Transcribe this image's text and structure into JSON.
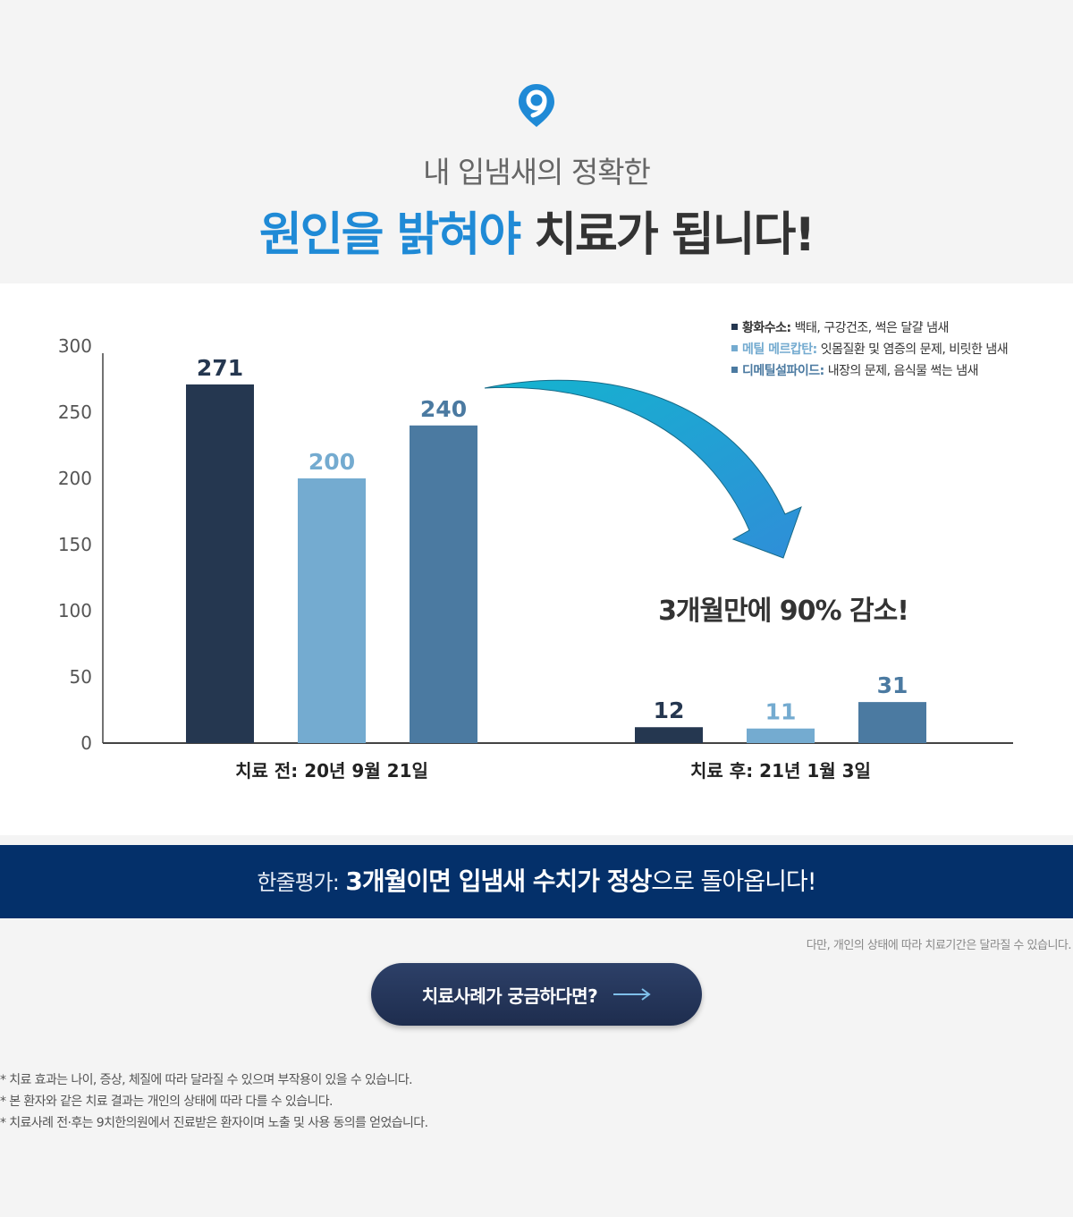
{
  "header": {
    "subtitle": "내 입냄새의 정확한",
    "title_highlight": "원인을 밝혀야",
    "title_rest": "치료가 됩니다!"
  },
  "colors": {
    "accent": "#1f8ad6",
    "series_1": "#253750",
    "series_2": "#74abd0",
    "series_3": "#4b7aa1",
    "summary_bg": "#04306a"
  },
  "legend": [
    {
      "name": "황화수소:",
      "desc": " 백태, 구강건조, 썩은 달걀 냄새",
      "color": "#253750"
    },
    {
      "name": "메틸 메르캅탄:",
      "desc": " 잇몸질환 및 염증의 문제, 비릿한 냄새",
      "color": "#74abd0"
    },
    {
      "name": "디메틸설파이드:",
      "desc": " 내장의 문제, 음식물 썩는 냄새",
      "color": "#4b7aa1"
    }
  ],
  "chart_data": {
    "type": "bar",
    "categories": [
      "치료 전: 20년 9월 21일",
      "치료 후: 21년 1월 3일"
    ],
    "series": [
      {
        "name": "황화수소",
        "values": [
          271,
          12
        ]
      },
      {
        "name": "메틸 메르캅탄",
        "values": [
          200,
          11
        ]
      },
      {
        "name": "디메틸설파이드",
        "values": [
          240,
          31
        ]
      }
    ],
    "ylim": [
      0,
      300
    ],
    "yticks": [
      0,
      50,
      100,
      150,
      200,
      250,
      300
    ],
    "grid": false,
    "legend_position": "top-right",
    "annotation": "3개월만에 90% 감소!"
  },
  "summary": {
    "lead": "한줄평가:",
    "bold1": "3개월이면 입냄새 수치가 정상",
    "rest": "으로 돌아옵니다!"
  },
  "disclaimer": "다만, 개인의 상태에 따라 치료기간은 달라질 수 있습니다.",
  "cta": {
    "label": "치료사례가 궁금하다면?"
  },
  "notes": [
    "* 치료 효과는 나이, 증상, 체질에 따라 달라질 수 있으며 부작용이 있을 수 있습니다.",
    "* 본 환자와 같은 치료 결과는 개인의 상태에 따라 다를 수 있습니다.",
    "* 치료사례 전·후는 9치한의원에서 진료받은 환자이며 노출 및 사용 동의를 얻었습니다."
  ]
}
